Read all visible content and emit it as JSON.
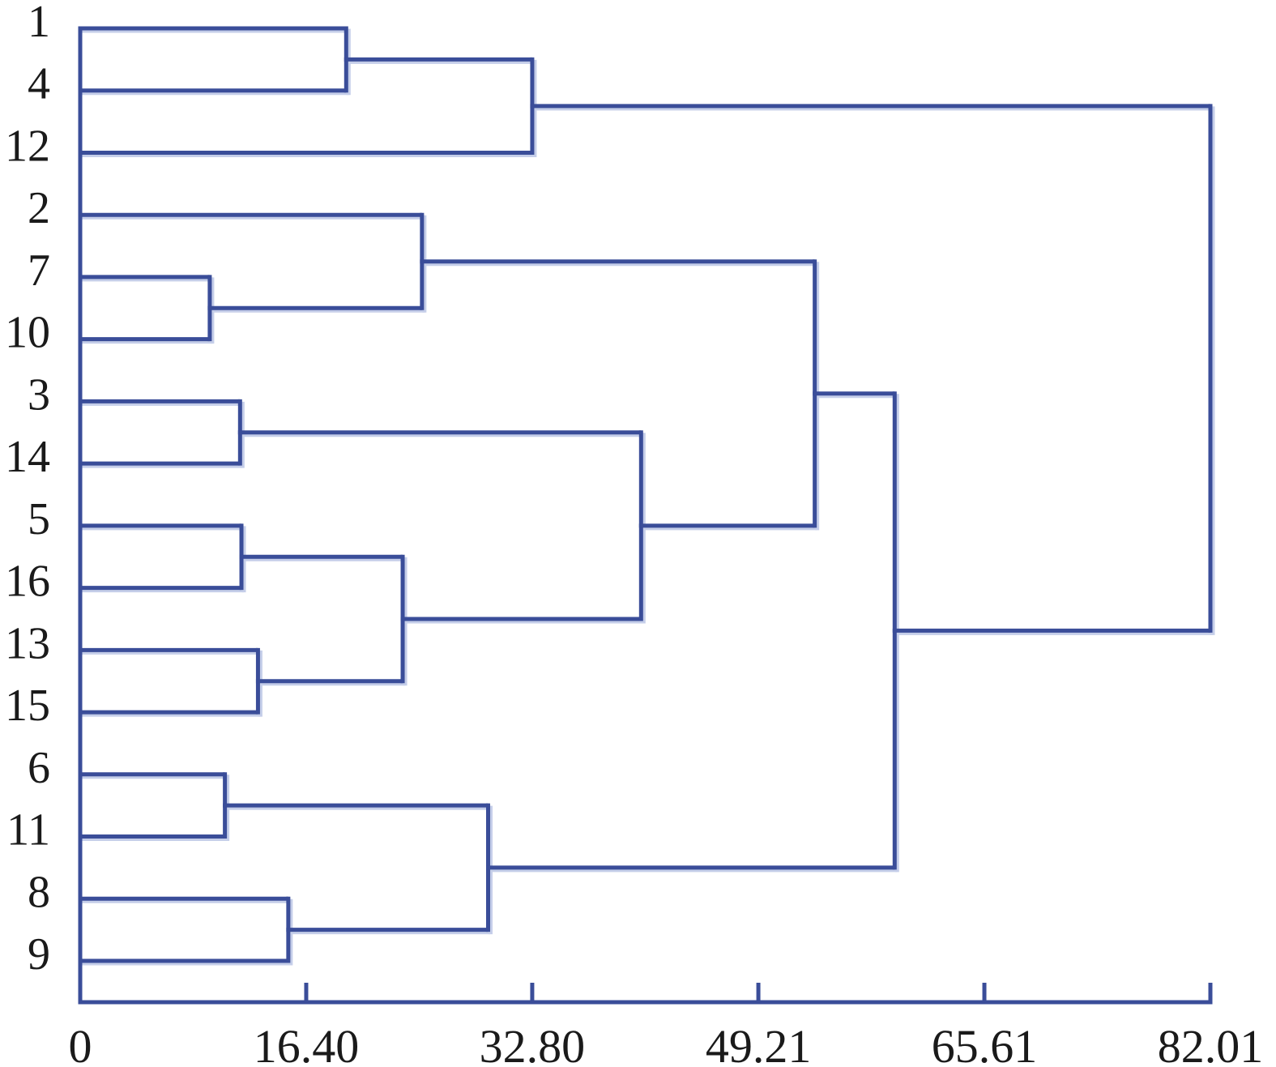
{
  "chart_data": {
    "type": "dendrogram",
    "orientation": "horizontal-right",
    "title": "",
    "xlabel": "",
    "ylabel": "",
    "x_axis": {
      "min": 0,
      "max": 82.01,
      "tick_values": [
        0,
        16.4,
        32.8,
        49.21,
        65.61,
        82.01
      ],
      "tick_labels": [
        "0",
        "16.40",
        "32.80",
        "49.21",
        "65.61",
        "82.01"
      ]
    },
    "leaves_top_to_bottom": [
      "1",
      "4",
      "12",
      "2",
      "7",
      "10",
      "3",
      "14",
      "5",
      "16",
      "13",
      "15",
      "6",
      "11",
      "8",
      "9"
    ],
    "merges": [
      {
        "id": "M0",
        "a": "L1",
        "b": "L4",
        "distance": 19.3
      },
      {
        "id": "M1",
        "a": "M0",
        "b": "L12",
        "distance": 32.8
      },
      {
        "id": "M2",
        "a": "L7",
        "b": "L10",
        "distance": 9.4
      },
      {
        "id": "M3",
        "a": "L2",
        "b": "M2",
        "distance": 24.8
      },
      {
        "id": "M4",
        "a": "L3",
        "b": "L14",
        "distance": 11.6
      },
      {
        "id": "M5",
        "a": "L5",
        "b": "L16",
        "distance": 11.7
      },
      {
        "id": "M6",
        "a": "L13",
        "b": "L15",
        "distance": 12.9
      },
      {
        "id": "M7",
        "a": "M5",
        "b": "M6",
        "distance": 23.4
      },
      {
        "id": "M8",
        "a": "M4",
        "b": "M7",
        "distance": 40.7
      },
      {
        "id": "M9",
        "a": "M3",
        "b": "M8",
        "distance": 53.3
      },
      {
        "id": "M10",
        "a": "L6",
        "b": "L11",
        "distance": 10.5
      },
      {
        "id": "M11",
        "a": "L8",
        "b": "L9",
        "distance": 15.1
      },
      {
        "id": "M12",
        "a": "M10",
        "b": "M11",
        "distance": 29.6
      },
      {
        "id": "M13",
        "a": "M9",
        "b": "M12",
        "distance": 59.1
      },
      {
        "id": "M14",
        "a": "M1",
        "b": "M13",
        "distance": 82.01
      }
    ],
    "colors": {
      "line": "#3a4d99",
      "axis": "#3a4d99",
      "text": "#1a1a1a",
      "background": "#ffffff"
    },
    "grid": false,
    "legend": null
  }
}
